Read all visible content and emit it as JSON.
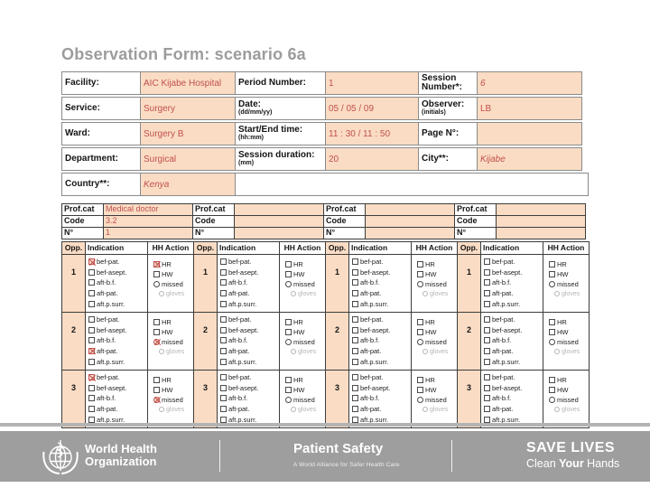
{
  "title": "Observation Form: scenario 6a",
  "colors": {
    "cell_fill": "#fadcc4",
    "handwriting": "#c0504d",
    "title_text": "#9c9c9c",
    "footer_bar": "#9e9e9e"
  },
  "form": {
    "facility": {
      "label": "Facility:",
      "value": "AIC Kijabe Hospital"
    },
    "service": {
      "label": "Service:",
      "value": "Surgery"
    },
    "ward": {
      "label": "Ward:",
      "value": "Surgery B"
    },
    "department": {
      "label": "Department:",
      "value": "Surgical"
    },
    "country": {
      "label": "Country**:",
      "value": "Kenya"
    },
    "period": {
      "label": "Period Number:",
      "value": "1"
    },
    "date": {
      "label": "Date:",
      "note": "(dd/mm/yy)",
      "value": "05 / 05 / 09"
    },
    "time": {
      "label": "Start/End time:",
      "note": "(hh:mm)",
      "value": "11 : 30 / 11 : 50"
    },
    "duration": {
      "label": "Session duration:",
      "note": "(mm)",
      "value": "20"
    },
    "session": {
      "label": "Session Number*:",
      "value": "6"
    },
    "observer": {
      "label": "Observer:",
      "note": "(initials)",
      "value": "LB"
    },
    "page": {
      "label": "Page N°:",
      "value": ""
    },
    "city": {
      "label": "City**:",
      "value": "Kijabe"
    }
  },
  "profcat": {
    "labels": {
      "cat": "Prof.cat",
      "code": "Code",
      "n": "N°"
    },
    "groups": [
      {
        "cat": "Medical doctor",
        "code": "3.2",
        "n": "1"
      },
      {
        "cat": "",
        "code": "",
        "n": ""
      },
      {
        "cat": "",
        "code": "",
        "n": ""
      },
      {
        "cat": "",
        "code": "",
        "n": ""
      }
    ]
  },
  "grid": {
    "headers": [
      "Opp.",
      "Indication",
      "HH Action"
    ],
    "indications": [
      "bef-pat.",
      "bef-asept.",
      "aft-b.f.",
      "aft-pat.",
      "aft.p.surr."
    ],
    "actions": [
      "HR",
      "HW",
      "missed",
      "gloves"
    ],
    "groups": [
      {
        "rows": [
          {
            "opp": "1",
            "ind": [
              0
            ],
            "act": [
              "HR"
            ]
          },
          {
            "opp": "2",
            "ind": [
              3
            ],
            "act": [
              "missed"
            ]
          },
          {
            "opp": "3",
            "ind": [
              0
            ],
            "act": [
              "missed"
            ]
          }
        ]
      },
      {
        "rows": [
          {
            "opp": "1",
            "ind": [],
            "act": []
          },
          {
            "opp": "2",
            "ind": [],
            "act": []
          },
          {
            "opp": "3",
            "ind": [],
            "act": []
          }
        ]
      },
      {
        "rows": [
          {
            "opp": "1",
            "ind": [],
            "act": []
          },
          {
            "opp": "2",
            "ind": [],
            "act": []
          },
          {
            "opp": "3",
            "ind": [],
            "act": []
          }
        ]
      },
      {
        "rows": [
          {
            "opp": "1",
            "ind": [],
            "act": []
          },
          {
            "opp": "2",
            "ind": [],
            "act": []
          },
          {
            "opp": "3",
            "ind": [],
            "act": []
          }
        ]
      }
    ]
  },
  "footer": {
    "org_line1": "World Health",
    "org_line2": "Organization",
    "program": "Patient Safety",
    "program_sub": "A World Alliance for Safer Health Care",
    "campaign": "SAVE LIVES",
    "campaign_sub1": "Clean ",
    "campaign_sub2": "Your",
    "campaign_sub3": " Hands"
  }
}
